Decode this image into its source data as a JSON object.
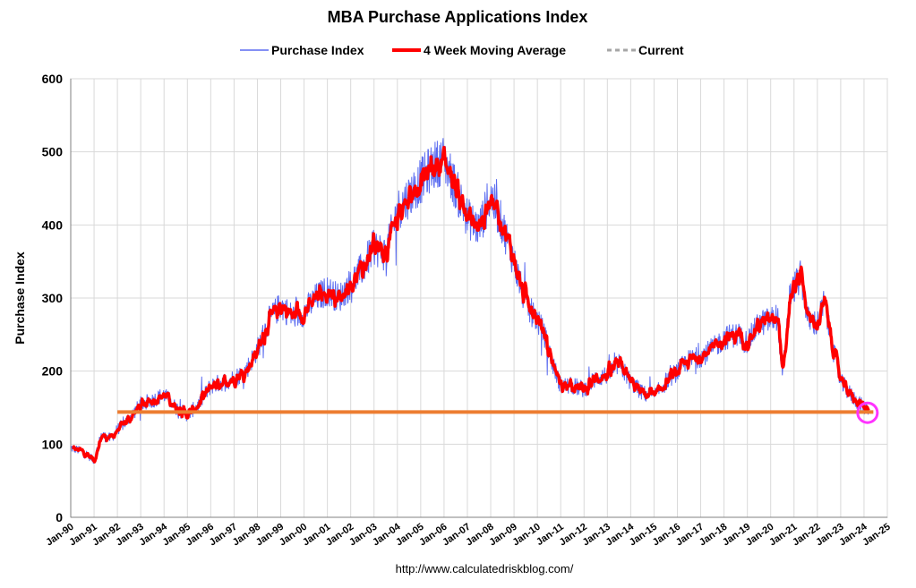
{
  "chart_data": {
    "type": "line",
    "title": "MBA Purchase Applications Index",
    "ylabel": "Purchase Index",
    "xlabel": "",
    "ylim": [
      0,
      600
    ],
    "yticks": [
      "0",
      "100",
      "200",
      "300",
      "400",
      "500",
      "600"
    ],
    "xtick_labels": [
      "Jan-90",
      "Jan-91",
      "Jan-92",
      "Jan-93",
      "Jan-94",
      "Jan-95",
      "Jan-96",
      "Jan-97",
      "Jan-98",
      "Jan-99",
      "Jan-00",
      "Jan-01",
      "Jan-02",
      "Jan-03",
      "Jan-04",
      "Jan-05",
      "Jan-06",
      "Jan-07",
      "Jan-08",
      "Jan-09",
      "Jan-10",
      "Jan-11",
      "Jan-12",
      "Jan-13",
      "Jan-14",
      "Jan-15",
      "Jan-16",
      "Jan-17",
      "Jan-18",
      "Jan-19",
      "Jan-20",
      "Jan-21",
      "Jan-22",
      "Jan-23",
      "Jan-24",
      "Jan-25"
    ],
    "xlim": [
      1990,
      2025
    ],
    "grid": true,
    "legend_position": "top-center",
    "legend": [
      {
        "label": "Purchase Index",
        "color": "#5b6cf0",
        "style": "solid-thin"
      },
      {
        "label": "4 Week Moving Average",
        "color": "#ff0000",
        "style": "solid-thick"
      },
      {
        "label": "Current",
        "color": "#a6a6a6",
        "style": "dashed"
      }
    ],
    "series": [
      {
        "name": "4 Week Moving Average",
        "color": "#ff0000",
        "x": [
          1990.0,
          1990.5,
          1991.0,
          1991.3,
          1991.7,
          1992.0,
          1992.5,
          1993.0,
          1993.5,
          1994.0,
          1994.5,
          1995.0,
          1995.5,
          1996.0,
          1996.5,
          1997.0,
          1997.5,
          1998.0,
          1998.5,
          1999.0,
          1999.5,
          2000.0,
          2000.5,
          2001.0,
          2001.5,
          2002.0,
          2002.5,
          2003.0,
          2003.5,
          2004.0,
          2004.5,
          2005.0,
          2005.5,
          2006.0,
          2006.5,
          2007.0,
          2007.5,
          2008.0,
          2008.5,
          2009.0,
          2009.5,
          2010.0,
          2010.3,
          2010.6,
          2011.0,
          2011.5,
          2012.0,
          2012.5,
          2013.0,
          2013.5,
          2014.0,
          2014.5,
          2015.0,
          2015.5,
          2016.0,
          2016.5,
          2017.0,
          2017.5,
          2018.0,
          2018.5,
          2019.0,
          2019.5,
          2020.0,
          2020.3,
          2020.5,
          2020.8,
          2021.0,
          2021.3,
          2021.6,
          2022.0,
          2022.3,
          2022.6,
          2023.0,
          2023.5,
          2024.0
        ],
        "y": [
          95,
          90,
          78,
          112,
          108,
          120,
          135,
          155,
          160,
          168,
          150,
          140,
          155,
          180,
          185,
          190,
          200,
          230,
          270,
          290,
          275,
          280,
          300,
          310,
          300,
          320,
          340,
          370,
          360,
          420,
          440,
          460,
          480,
          490,
          450,
          410,
          395,
          440,
          400,
          350,
          290,
          270,
          250,
          215,
          180,
          180,
          175,
          190,
          195,
          210,
          185,
          170,
          165,
          185,
          200,
          215,
          220,
          230,
          245,
          250,
          240,
          265,
          270,
          275,
          190,
          300,
          315,
          330,
          270,
          265,
          295,
          240,
          185,
          165,
          150
        ]
      },
      {
        "name": "Current",
        "color": "#ed7d31",
        "x": [
          1992.0,
          2024.4
        ],
        "y": [
          144,
          144
        ]
      }
    ],
    "annotations": [
      {
        "type": "circle",
        "x": 2024.15,
        "y": 143,
        "color": "#ff33ff"
      }
    ]
  },
  "footer": "http://www.calculatedriskblog.com/"
}
